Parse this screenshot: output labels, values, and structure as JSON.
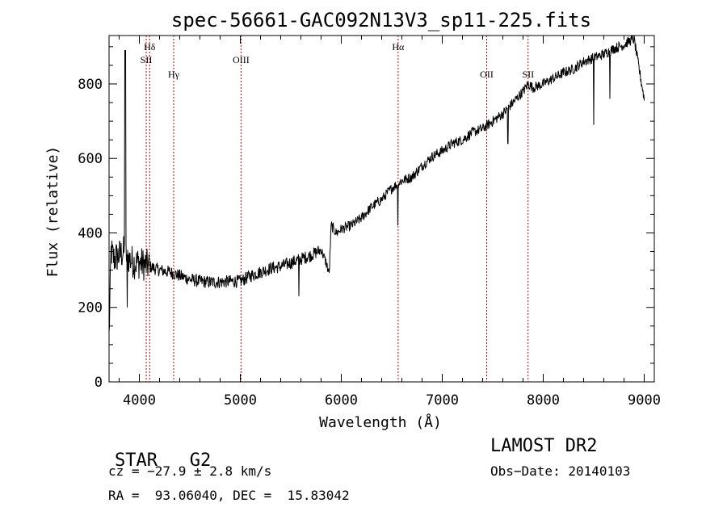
{
  "chart_data": {
    "type": "line",
    "title": "spec-56661-GAC092N13V3_sp11-225.fits",
    "xlabel": "Wavelength (Å)",
    "ylabel": "Flux (relative)",
    "xlim": [
      3700,
      9100
    ],
    "ylim": [
      0,
      930
    ],
    "x_ticks": [
      4000,
      5000,
      6000,
      7000,
      8000,
      9000
    ],
    "y_ticks": [
      0,
      200,
      400,
      600,
      800
    ],
    "x_tick_labels": [
      "4000",
      "5000",
      "6000",
      "7000",
      "8000",
      "9000"
    ],
    "y_tick_labels": [
      "0",
      "200",
      "400",
      "600",
      "800"
    ],
    "grid": false,
    "line_color": "#000000",
    "marker_color": "#c00000",
    "series": [
      {
        "x": [
          3700,
          3720,
          3750,
          3800,
          3850,
          3900,
          3950,
          4000,
          4100,
          4200,
          4300,
          4400,
          4500,
          4600,
          4700,
          4800,
          4900,
          5000,
          5100,
          5200,
          5300,
          5400,
          5500,
          5600,
          5700,
          5800,
          5850,
          5880,
          5900,
          5950,
          6000,
          6100,
          6200,
          6300,
          6400,
          6500,
          6600,
          6700,
          6800,
          6900,
          7000,
          7100,
          7200,
          7300,
          7400,
          7500,
          7600,
          7700,
          7800,
          7850,
          7900,
          8000,
          8100,
          8200,
          8300,
          8400,
          8500,
          8600,
          8700,
          8800,
          8850,
          8900,
          9000
        ],
        "y": [
          120,
          350,
          330,
          340,
          350,
          330,
          320,
          320,
          310,
          300,
          295,
          285,
          275,
          270,
          268,
          268,
          270,
          270,
          285,
          295,
          305,
          310,
          320,
          330,
          340,
          355,
          320,
          290,
          420,
          400,
          410,
          420,
          440,
          470,
          490,
          520,
          540,
          550,
          580,
          605,
          620,
          640,
          650,
          670,
          680,
          700,
          720,
          750,
          780,
          800,
          790,
          800,
          815,
          830,
          840,
          860,
          870,
          880,
          895,
          905,
          915,
          920,
          760
        ]
      }
    ],
    "line_markers": [
      {
        "x": 4068,
        "label": "SII",
        "row": 2
      },
      {
        "x": 4102,
        "label": "Hδ",
        "row": 1
      },
      {
        "x": 4340,
        "label": "Hγ",
        "row": 3
      },
      {
        "x": 5007,
        "label": "OIII",
        "row": 2
      },
      {
        "x": 6563,
        "label": "Hα",
        "row": 1
      },
      {
        "x": 7440,
        "label": "OII",
        "row": 3
      },
      {
        "x": 7850,
        "label": "SII",
        "row": 3
      }
    ]
  },
  "info": {
    "class_label": "STAR",
    "subclass": "G2",
    "survey": "LAMOST DR2",
    "cz": "cz = −27.9 ± 2.8 km/s",
    "obs_date": "Obs−Date: 20140103",
    "coords": "RA =  93.06040, DEC =  15.83042"
  }
}
